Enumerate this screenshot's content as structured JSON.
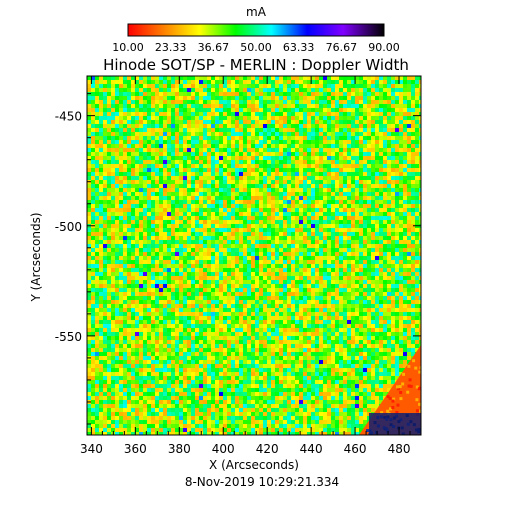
{
  "chart_data": {
    "type": "heatmap",
    "title": "Hinode SOT/SP - MERLIN : Doppler Width",
    "subtitle": "8-Nov-2019 10:29:21.334",
    "colorbar": {
      "label": "mA",
      "ticks": [
        "10.00",
        "23.33",
        "36.67",
        "50.00",
        "63.33",
        "76.67",
        "90.00"
      ],
      "range": [
        10,
        90
      ],
      "colors": [
        "#ff0000",
        "#ff8000",
        "#ffff00",
        "#00ff00",
        "#00ffff",
        "#0000ff",
        "#8000ff",
        "#000000"
      ]
    },
    "xlabel": "X (Arcseconds)",
    "ylabel": "Y (Arcseconds)",
    "xlim": [
      338,
      490
    ],
    "ylim": [
      -595,
      -432
    ],
    "xticks": [
      "340",
      "360",
      "380",
      "400",
      "420",
      "440",
      "460",
      "480"
    ],
    "xtick_values": [
      340,
      360,
      380,
      400,
      420,
      440,
      460,
      480
    ],
    "yticks": [
      "-450",
      "-500",
      "-550"
    ],
    "ytick_values": [
      -450,
      -500,
      -550
    ],
    "dominant_value_range": [
      20,
      55
    ],
    "off_limb_region": "lower-right corner"
  }
}
